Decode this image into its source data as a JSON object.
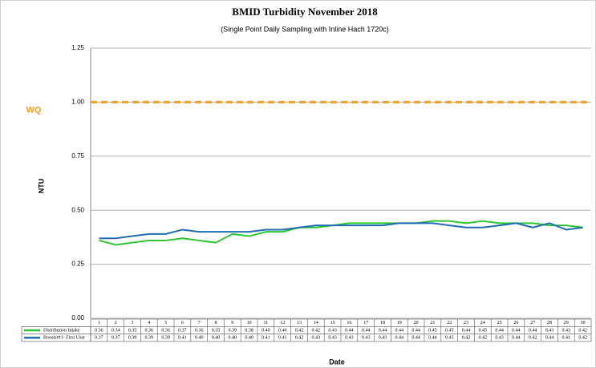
{
  "chart_data": {
    "type": "line",
    "title": "BMID Turbidity November 2018",
    "subtitle": "(Single Point Daily Sampling with Inline Hach 1720c)",
    "y_label": "NTU",
    "x_label": "Date",
    "categories": [
      "1",
      "2",
      "3",
      "4",
      "5",
      "6",
      "7",
      "8",
      "9",
      "10",
      "11",
      "12",
      "13",
      "14",
      "15",
      "16",
      "17",
      "18",
      "19",
      "20",
      "21",
      "22",
      "23",
      "24",
      "25",
      "26",
      "27",
      "28",
      "29",
      "30"
    ],
    "series": [
      {
        "name": "Distribution Intake",
        "color": "#2fc52f",
        "values": [
          0.36,
          0.34,
          0.35,
          0.36,
          0.36,
          0.37,
          0.36,
          0.35,
          0.39,
          0.38,
          0.4,
          0.4,
          0.42,
          0.42,
          0.43,
          0.44,
          0.44,
          0.44,
          0.44,
          0.44,
          0.45,
          0.45,
          0.44,
          0.45,
          0.44,
          0.44,
          0.44,
          0.43,
          0.43,
          0.42
        ],
        "value_labels": [
          "0.36",
          "0.34",
          "0.35",
          "0.36",
          "0.36",
          "0.37",
          "0.36",
          "0.35",
          "0.39",
          "0.38",
          "0.40",
          "0.40",
          "0.42",
          "0.42",
          "0.43",
          "0.44",
          "0.44",
          "0.44",
          "0.44",
          "0.44",
          "0.45",
          "0.45",
          "0.44",
          "0.45",
          "0.44",
          "0.44",
          "0.44",
          "0.43",
          "0.43",
          "0.42"
        ]
      },
      {
        "name": "Booster#1- First User",
        "color": "#1f6db5",
        "values": [
          0.37,
          0.37,
          0.38,
          0.39,
          0.39,
          0.41,
          0.4,
          0.4,
          0.4,
          0.4,
          0.41,
          0.41,
          0.42,
          0.43,
          0.43,
          0.43,
          0.43,
          0.43,
          0.44,
          0.44,
          0.44,
          0.43,
          0.42,
          0.42,
          0.43,
          0.44,
          0.42,
          0.44,
          0.41,
          0.42
        ],
        "value_labels": [
          "0.37",
          "0.37",
          "0.38",
          "0.39",
          "0.39",
          "0.41",
          "0.40",
          "0.40",
          "0.40",
          "0.40",
          "0.41",
          "0.41",
          "0.42",
          "0.43",
          "0.43",
          "0.43",
          "0.43",
          "0.43",
          "0.44",
          "0.44",
          "0.44",
          "0.43",
          "0.42",
          "0.42",
          "0.43",
          "0.44",
          "0.42",
          "0.44",
          "0.41",
          "0.42"
        ]
      }
    ],
    "reference_line": {
      "label": "WQ",
      "value": 1,
      "color": "#f5a01f"
    },
    "ylim": [
      0,
      1.25
    ],
    "yticks": [
      {
        "value": 0,
        "label": "0.00"
      },
      {
        "value": 0.25,
        "label": "0.25"
      },
      {
        "value": 0.5,
        "label": "0.50"
      },
      {
        "value": 0.75,
        "label": "0.75"
      },
      {
        "value": 1,
        "label": "1.00"
      },
      {
        "value": 1.25,
        "label": "1.25"
      }
    ],
    "grid": true
  }
}
